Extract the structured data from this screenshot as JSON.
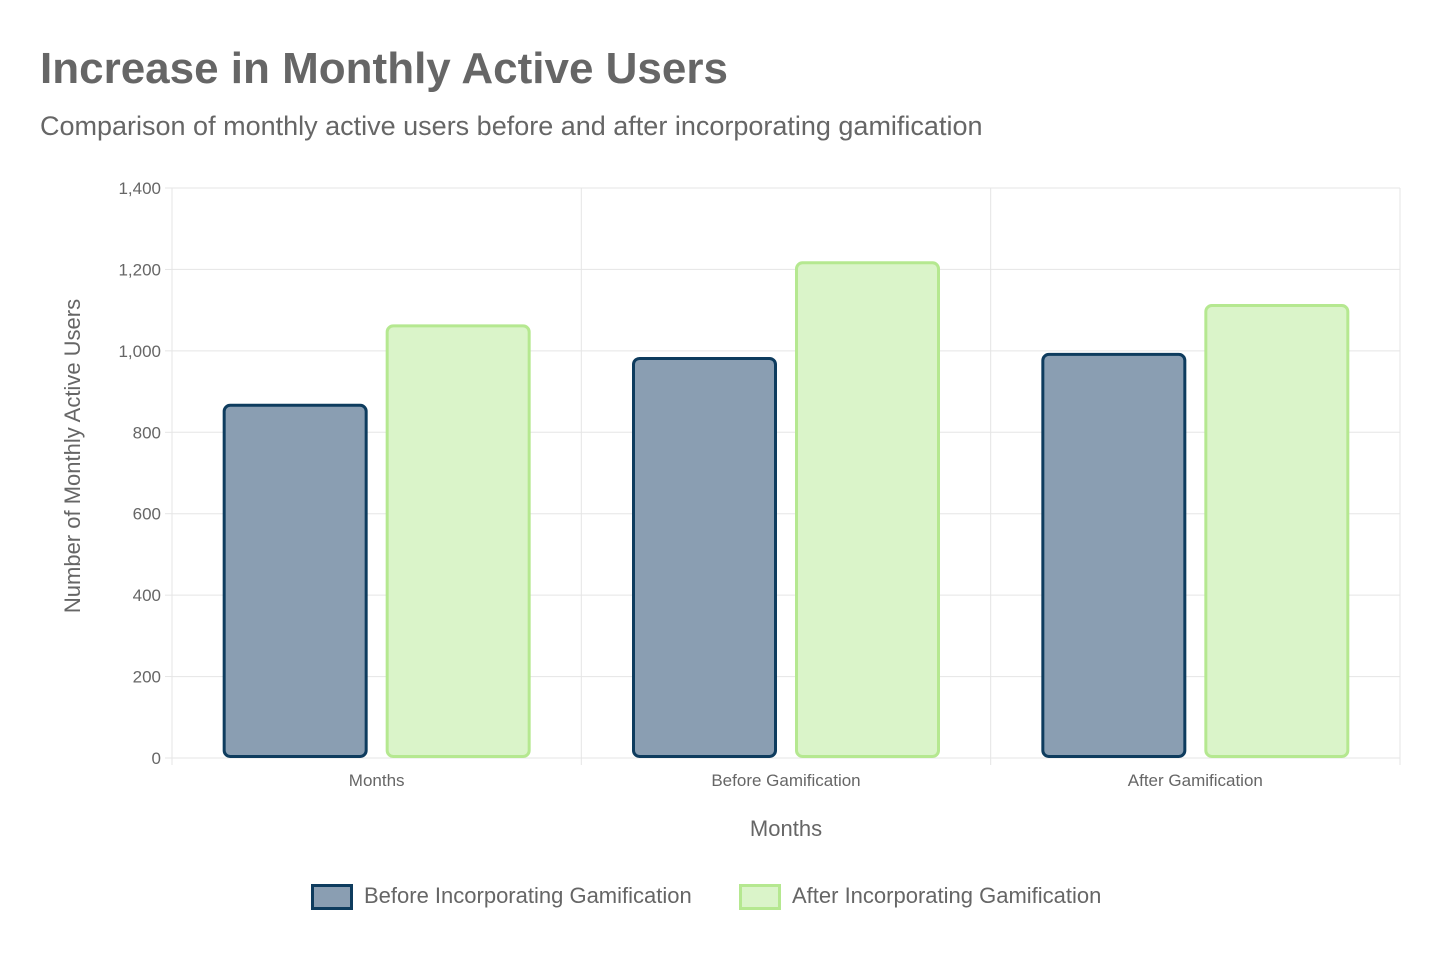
{
  "chart_data": {
    "type": "bar",
    "title": "Increase in Monthly Active Users",
    "subtitle": "Comparison of monthly active users before and after incorporating gamification",
    "xlabel": "Months",
    "ylabel": "Number of Monthly Active Users",
    "categories": [
      "Months",
      "Before Gamification",
      "After Gamification"
    ],
    "ylim": [
      0,
      1400
    ],
    "yticks": [
      0,
      200,
      400,
      600,
      800,
      1000,
      1200,
      1400
    ],
    "ytick_labels": [
      "0",
      "200",
      "400",
      "600",
      "800",
      "1,000",
      "1,200",
      "1,400"
    ],
    "grid": true,
    "legend_position": "bottom",
    "series": [
      {
        "name": "Before Incorporating Gamification",
        "values": [
          870,
          985,
          995
        ],
        "fill": "#8a9eb2",
        "border": "#0e3c5e"
      },
      {
        "name": "After Incorporating Gamification",
        "values": [
          1065,
          1220,
          1115
        ],
        "fill": "#daf4c9",
        "border": "#b5e890"
      }
    ]
  }
}
